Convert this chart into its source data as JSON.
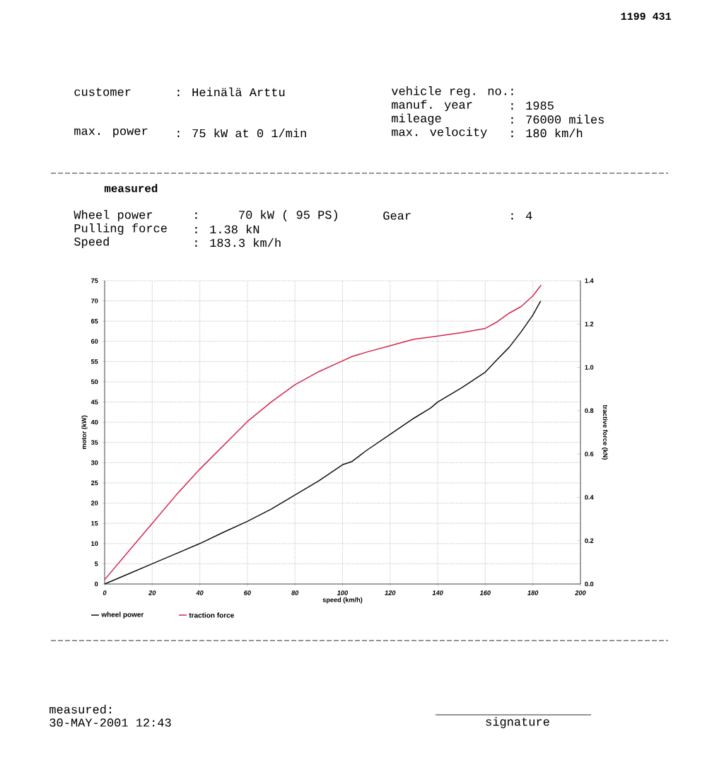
{
  "chart_data": {
    "type": "line",
    "xlabel": "speed (km/h)",
    "ylabel": "motor (kW)",
    "y2label": "tractive force (kN)",
    "xlim": [
      0,
      200
    ],
    "xticks": [
      0,
      20,
      40,
      60,
      80,
      100,
      120,
      140,
      160,
      180,
      200
    ],
    "ylim": [
      0,
      75
    ],
    "yticks": [
      0,
      5,
      10,
      15,
      20,
      25,
      30,
      35,
      40,
      45,
      50,
      55,
      60,
      65,
      70,
      75
    ],
    "y2lim": [
      0,
      1.4
    ],
    "y2ticks": [
      {
        "value": 0,
        "label": "0.0"
      },
      0.2,
      0.4,
      0.6,
      0.8,
      {
        "value": 1,
        "label": "1.0"
      },
      1.2,
      1.4
    ],
    "grid": true,
    "legend": "bottom left",
    "series": [
      {
        "name": "wheel power",
        "color": "#111111",
        "x": [
          0,
          10,
          20,
          30,
          40,
          50,
          60,
          70,
          80,
          90,
          100,
          104,
          110,
          120,
          130,
          137,
          140,
          150,
          160,
          165,
          170,
          175,
          180,
          183.3
        ],
        "values": [
          0,
          2.5,
          5,
          7.5,
          10,
          12.8,
          15.5,
          18.5,
          22,
          25.5,
          29.5,
          30.3,
          33,
          37,
          41,
          43.5,
          45,
          48.5,
          52.4,
          55.5,
          58.5,
          62.3,
          66.5,
          70
        ]
      },
      {
        "name": "traction force",
        "color": "#d0284c",
        "axis": "y2",
        "x": [
          0,
          10,
          20,
          30,
          40,
          50,
          60,
          70,
          80,
          90,
          100,
          104,
          110,
          120,
          130,
          137,
          150,
          160,
          165,
          170,
          175,
          180,
          183.5
        ],
        "values": [
          0.02,
          0.15,
          0.28,
          0.41,
          0.53,
          0.64,
          0.75,
          0.84,
          0.92,
          0.98,
          1.03,
          1.05,
          1.07,
          1.1,
          1.13,
          1.14,
          1.16,
          1.18,
          1.21,
          1.25,
          1.28,
          1.33,
          1.38
        ]
      }
    ],
    "annotations": [
      "1199 431",
      "customer",
      ": Heinälä Arttu",
      "max. power",
      ": 75 kW at 0 1/min",
      "vehicle reg. no.",
      ":",
      "manuf. year",
      ": 1985",
      "mileage",
      ": 76000 miles",
      "max. velocity",
      ": 180 km/h",
      "measured",
      "Wheel power",
      ":    70 kW ( 95 PS)",
      "Pulling force",
      ":  1.38 kN",
      "Speed",
      ": 183.3 km/h",
      "Gear",
      ": 4",
      "measured:",
      "30-MAY-2001 12:43",
      "signature"
    ]
  }
}
